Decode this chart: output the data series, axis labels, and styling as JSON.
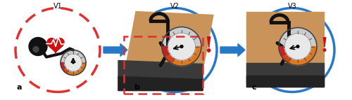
{
  "panel_labels": [
    "a",
    "b",
    "c"
  ],
  "panel_titles": [
    "V1",
    "V2",
    "V3"
  ],
  "fig_width": 5.0,
  "fig_height": 1.43,
  "dpi": 100,
  "bg_color": "#ffffff",
  "red_circle_color": "#e03030",
  "blue_circle_color": "#2878c8",
  "arrow_color": "#2878c8",
  "exclamation_color": "#cc1111",
  "skin_color": "#c9935a",
  "cuff_dark": "#3a3a3a",
  "cuff_mid": "#555555",
  "gauge_white": "#f0f0f0",
  "gauge_lgray": "#cccccc",
  "gauge_orange": "#e07820",
  "gauge_red": "#cc2020",
  "heart_color": "#cc1111",
  "black": "#111111",
  "white": "#ffffff",
  "dgray": "#555555",
  "tube_color": "#222222",
  "red_dash_color": "#e03030"
}
